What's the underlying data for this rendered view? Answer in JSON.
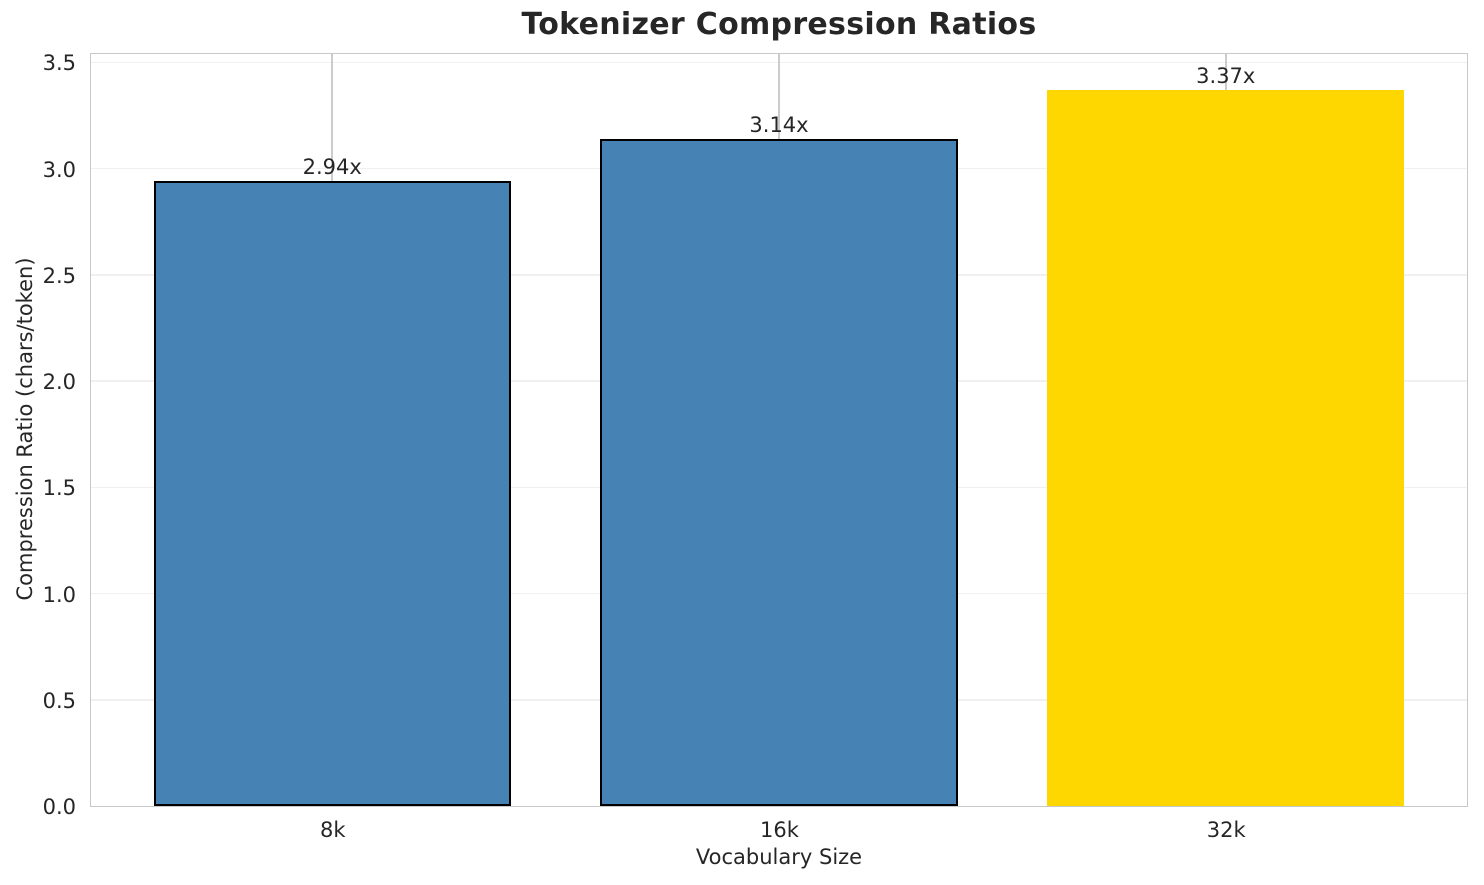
{
  "chart_data": {
    "type": "bar",
    "title": "Tokenizer Compression Ratios",
    "xlabel": "Vocabulary Size",
    "ylabel": "Compression Ratio (chars/token)",
    "categories": [
      "8k",
      "16k",
      "32k"
    ],
    "values": [
      2.94,
      3.14,
      3.37
    ],
    "bar_labels": [
      "2.94x",
      "3.14x",
      "3.37x"
    ],
    "bar_colors": [
      "#4682B4",
      "#4682B4",
      "#FFD700"
    ],
    "bar_edge_colors": [
      "#000000",
      "#000000",
      "none"
    ],
    "yticks": [
      "0.0",
      "0.5",
      "1.0",
      "1.5",
      "2.0",
      "2.5",
      "3.0",
      "3.5"
    ],
    "ylim": [
      0,
      3.54
    ],
    "xlim": [
      -0.54,
      2.54
    ],
    "bar_width": 0.8,
    "grid": true,
    "legend": "none",
    "colors": {
      "title_text": "#262626",
      "tick_text": "#262626",
      "spine": "#c8c8c8",
      "grid_horizontal": "#f0f0f0",
      "grid_vertical": "#cccccc",
      "bar_default": "#4682B4",
      "bar_highlight": "#FFD700"
    }
  }
}
